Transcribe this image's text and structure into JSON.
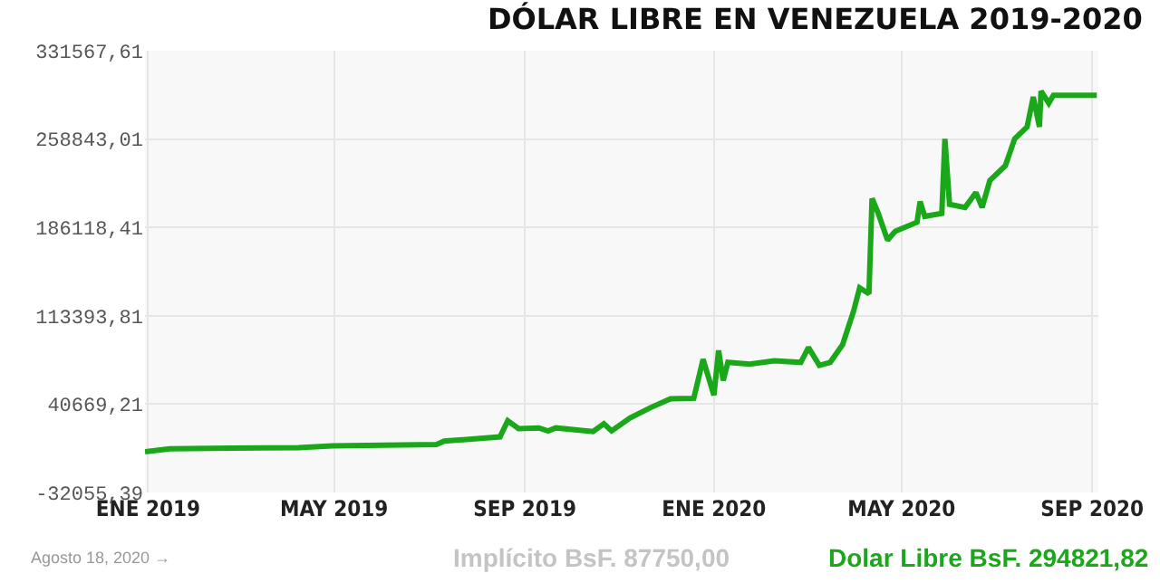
{
  "chart_data": {
    "type": "line",
    "title": "DÓLAR LIBRE EN VENEZUELA 2019-2020",
    "x": [
      "2018-12-30",
      "2019-01-15",
      "2019-04-08",
      "2019-04-30",
      "2019-07-06",
      "2019-07-11",
      "2019-08-16",
      "2019-08-21",
      "2019-08-28",
      "2019-09-10",
      "2019-09-16",
      "2019-09-21",
      "2019-10-15",
      "2019-10-22",
      "2019-10-27",
      "2019-11-08",
      "2019-11-21",
      "2019-12-04",
      "2019-12-19",
      "2019-12-25",
      "2020-01-01",
      "2020-01-04",
      "2020-01-07",
      "2020-01-10",
      "2020-01-24",
      "2020-02-09",
      "2020-02-26",
      "2020-03-02",
      "2020-03-09",
      "2020-03-16",
      "2020-03-24",
      "2020-03-31",
      "2020-04-04",
      "2020-04-10",
      "2020-04-12",
      "2020-04-16",
      "2020-04-22",
      "2020-04-27",
      "2020-05-11",
      "2020-05-13",
      "2020-05-16",
      "2020-05-27",
      "2020-05-29",
      "2020-06-01",
      "2020-06-11",
      "2020-06-18",
      "2020-06-22",
      "2020-06-27",
      "2020-07-07",
      "2020-07-13",
      "2020-07-21",
      "2020-07-25",
      "2020-07-29",
      "2020-07-30",
      "2020-08-04",
      "2020-08-07",
      "2020-09-04"
    ],
    "series": [
      {
        "color": "#1aa81a",
        "values": [
          1400,
          3900,
          4900,
          6400,
          7500,
          10200,
          13700,
          27000,
          20500,
          21100,
          18600,
          21100,
          18100,
          24500,
          18600,
          29300,
          37700,
          45100,
          45500,
          77500,
          48000,
          84800,
          60200,
          75000,
          73500,
          76400,
          75000,
          87300,
          72600,
          75000,
          89700,
          116800,
          136300,
          131500,
          209900,
          197700,
          175600,
          183000,
          190400,
          207400,
          195200,
          197700,
          259000,
          205100,
          202600,
          214800,
          202600,
          224700,
          236900,
          259000,
          268800,
          293400,
          268800,
          298300,
          288400,
          294821.82,
          294821.82
        ]
      }
    ],
    "xlim": [
      "2018-12-30",
      "2020-09-05"
    ],
    "xticks": [
      {
        "value": "2019-01-01",
        "label": "ENE 2019"
      },
      {
        "value": "2019-05-01",
        "label": "MAY 2019"
      },
      {
        "value": "2019-09-01",
        "label": "SEP 2019"
      },
      {
        "value": "2020-01-01",
        "label": "ENE 2020"
      },
      {
        "value": "2020-05-01",
        "label": "MAY 2020"
      },
      {
        "value": "2020-09-01",
        "label": "SEP 2020"
      }
    ],
    "ylim": [
      -32055.39,
      331567.61
    ],
    "yticks": [
      {
        "value": -32055.39,
        "label": "-32055,39"
      },
      {
        "value": 40669.21,
        "label": "40669,21"
      },
      {
        "value": 113393.81,
        "label": "113393,81"
      },
      {
        "value": 186118.41,
        "label": "186118,41"
      },
      {
        "value": 258843.01,
        "label": "258843,01"
      },
      {
        "value": 331567.61,
        "label": "331567,61"
      }
    ],
    "grid": true,
    "marker": "none",
    "line_style": "solid",
    "annotations": [
      "Agosto 18, 2020 →",
      "Implícito BsF. 87750,00",
      "Dolar Libre BsF. 294821,82"
    ]
  }
}
